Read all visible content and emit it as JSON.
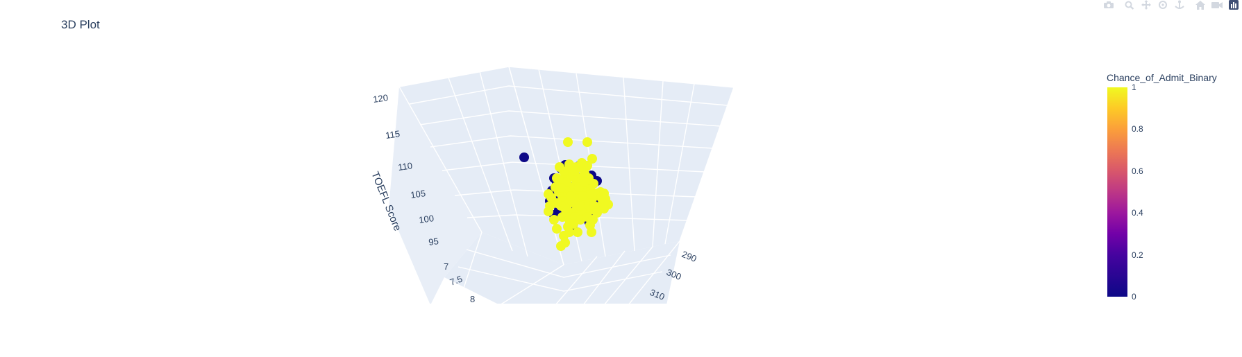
{
  "title": "3D Plot",
  "modebar": {
    "icons": [
      "camera-icon",
      "zoom-icon",
      "pan-icon",
      "orbit-icon",
      "turntable-icon",
      "home-icon",
      "reset-camera-icon",
      "plotly-logo-icon"
    ]
  },
  "chart_data": {
    "type": "scatter3d",
    "title": "3D Plot",
    "axes": {
      "x": {
        "tick_labels": [
          "290",
          "300",
          "310"
        ]
      },
      "y": {
        "tick_labels": [
          "7",
          "7.5",
          "8"
        ]
      },
      "z": {
        "label": "TOEFL Score",
        "tick_labels": [
          "95",
          "100",
          "105",
          "110",
          "115",
          "120"
        ]
      }
    },
    "colorbar": {
      "title": "Chance_of_Admit_Binary",
      "ticks": [
        "0",
        "0.2",
        "0.4",
        "0.6",
        "0.8",
        "1"
      ],
      "colorscale": "plasma"
    },
    "colors": {
      "class_0": "#0d0887",
      "class_1": "#f0f921",
      "axis_text": "#2a3f5f",
      "bg": "#e5ecf6",
      "grid": "#ffffff"
    },
    "points": [
      {
        "u": -0.65,
        "v": 0.08,
        "c": 0
      },
      {
        "u": -0.02,
        "v": 0.3,
        "c": 1
      },
      {
        "u": 0.33,
        "v": 0.06,
        "c": 1
      },
      {
        "u": 0.26,
        "v": 0.3,
        "c": 1
      },
      {
        "u": 0.15,
        "v": -0.04,
        "c": 0
      },
      {
        "u": 0.2,
        "v": -0.06,
        "c": 0
      },
      {
        "u": 0.32,
        "v": -0.18,
        "c": 0
      },
      {
        "u": 0.4,
        "v": -0.26,
        "c": 0
      },
      {
        "u": 0.3,
        "v": -0.34,
        "c": 0
      },
      {
        "u": 0.45,
        "v": -0.42,
        "c": 1
      },
      {
        "u": -0.22,
        "v": -0.22,
        "c": 0
      },
      {
        "u": -0.12,
        "v": -0.08,
        "c": 0
      },
      {
        "u": -0.06,
        "v": -0.03,
        "c": 0
      },
      {
        "u": -0.25,
        "v": -0.4,
        "c": 0
      },
      {
        "u": -0.28,
        "v": -0.55,
        "c": 0
      },
      {
        "u": -0.22,
        "v": -0.75,
        "c": 0
      },
      {
        "u": -0.15,
        "v": -0.68,
        "c": 0
      },
      {
        "u": -0.08,
        "v": -0.72,
        "c": 0
      },
      {
        "u": 0.05,
        "v": -0.9,
        "c": 0
      },
      {
        "u": 0.15,
        "v": -0.8,
        "c": 0
      },
      {
        "u": 0.28,
        "v": -0.84,
        "c": 0
      },
      {
        "u": 0.38,
        "v": -0.72,
        "c": 0
      },
      {
        "u": 0.42,
        "v": -0.6,
        "c": 0
      },
      {
        "u": 0.42,
        "v": -0.48,
        "c": 0
      },
      {
        "u": 0.22,
        "v": -0.3,
        "c": 0
      },
      {
        "u": 0.18,
        "v": -0.5,
        "c": 0
      },
      {
        "u": 0.05,
        "v": -0.62,
        "c": 0
      },
      {
        "u": -0.02,
        "v": -0.46,
        "c": 0
      },
      {
        "u": 0.1,
        "v": -0.2,
        "c": 0
      },
      {
        "u": 0.3,
        "v": -0.7,
        "c": 0
      },
      {
        "u": 0.12,
        "v": -0.75,
        "c": 0
      },
      {
        "u": -0.2,
        "v": -0.55,
        "c": 0
      },
      {
        "u": 0.38,
        "v": -0.52,
        "c": 0
      },
      {
        "u": -0.18,
        "v": -0.3,
        "c": 0
      },
      {
        "u": 0.24,
        "v": -0.55,
        "c": 0
      },
      {
        "u": 0.02,
        "v": -0.35,
        "c": 0
      },
      {
        "u": -0.18,
        "v": -0.22,
        "c": 1
      },
      {
        "u": -0.14,
        "v": -0.3,
        "c": 1
      },
      {
        "u": -0.1,
        "v": -0.24,
        "c": 1
      },
      {
        "u": -0.05,
        "v": -0.15,
        "c": 1
      },
      {
        "u": 0.0,
        "v": -0.1,
        "c": 1
      },
      {
        "u": 0.05,
        "v": -0.2,
        "c": 1
      },
      {
        "u": 0.1,
        "v": -0.3,
        "c": 1
      },
      {
        "u": 0.15,
        "v": -0.22,
        "c": 1
      },
      {
        "u": 0.22,
        "v": -0.15,
        "c": 1
      },
      {
        "u": 0.28,
        "v": -0.22,
        "c": 1
      },
      {
        "u": 0.35,
        "v": -0.3,
        "c": 1
      },
      {
        "u": 0.3,
        "v": -0.38,
        "c": 1
      },
      {
        "u": 0.25,
        "v": -0.42,
        "c": 1
      },
      {
        "u": 0.18,
        "v": -0.38,
        "c": 1
      },
      {
        "u": 0.12,
        "v": -0.45,
        "c": 1
      },
      {
        "u": 0.05,
        "v": -0.42,
        "c": 1
      },
      {
        "u": 0.0,
        "v": -0.35,
        "c": 1
      },
      {
        "u": -0.05,
        "v": -0.4,
        "c": 1
      },
      {
        "u": -0.1,
        "v": -0.48,
        "c": 1
      },
      {
        "u": -0.15,
        "v": -0.42,
        "c": 1
      },
      {
        "u": -0.2,
        "v": -0.35,
        "c": 1
      },
      {
        "u": -0.08,
        "v": -0.55,
        "c": 1
      },
      {
        "u": -0.02,
        "v": -0.6,
        "c": 1
      },
      {
        "u": 0.04,
        "v": -0.55,
        "c": 1
      },
      {
        "u": 0.1,
        "v": -0.6,
        "c": 1
      },
      {
        "u": 0.16,
        "v": -0.55,
        "c": 1
      },
      {
        "u": 0.22,
        "v": -0.6,
        "c": 1
      },
      {
        "u": 0.28,
        "v": -0.55,
        "c": 1
      },
      {
        "u": 0.34,
        "v": -0.5,
        "c": 1
      },
      {
        "u": 0.4,
        "v": -0.44,
        "c": 1
      },
      {
        "u": 0.46,
        "v": -0.5,
        "c": 1
      },
      {
        "u": 0.5,
        "v": -0.44,
        "c": 1
      },
      {
        "u": 0.52,
        "v": -0.52,
        "c": 1
      },
      {
        "u": 0.48,
        "v": -0.58,
        "c": 1
      },
      {
        "u": 0.42,
        "v": -0.64,
        "c": 1
      },
      {
        "u": 0.36,
        "v": -0.62,
        "c": 1
      },
      {
        "u": 0.3,
        "v": -0.68,
        "c": 1
      },
      {
        "u": 0.24,
        "v": -0.66,
        "c": 1
      },
      {
        "u": 0.18,
        "v": -0.7,
        "c": 1
      },
      {
        "u": 0.1,
        "v": -0.68,
        "c": 1
      },
      {
        "u": 0.02,
        "v": -0.72,
        "c": 1
      },
      {
        "u": -0.06,
        "v": -0.66,
        "c": 1
      },
      {
        "u": -0.12,
        "v": -0.62,
        "c": 1
      },
      {
        "u": -0.18,
        "v": -0.58,
        "c": 1
      },
      {
        "u": -0.26,
        "v": -0.5,
        "c": 1
      },
      {
        "u": -0.28,
        "v": -0.62,
        "c": 1
      },
      {
        "u": -0.3,
        "v": -0.7,
        "c": 1
      },
      {
        "u": -0.22,
        "v": -0.82,
        "c": 1
      },
      {
        "u": -0.1,
        "v": -0.78,
        "c": 1
      },
      {
        "u": 0.0,
        "v": -0.82,
        "c": 1
      },
      {
        "u": 0.08,
        "v": -0.78,
        "c": 1
      },
      {
        "u": 0.16,
        "v": -0.82,
        "c": 1
      },
      {
        "u": 0.26,
        "v": -0.78,
        "c": 1
      },
      {
        "u": 0.34,
        "v": -0.82,
        "c": 1
      },
      {
        "u": 0.4,
        "v": -0.72,
        "c": 1
      },
      {
        "u": -0.18,
        "v": -0.95,
        "c": 1
      },
      {
        "u": -0.08,
        "v": -1.05,
        "c": 1
      },
      {
        "u": 0.0,
        "v": -1.0,
        "c": 1
      },
      {
        "u": 0.12,
        "v": -1.0,
        "c": 1
      },
      {
        "u": 0.32,
        "v": -1.0,
        "c": 1
      },
      {
        "u": 0.3,
        "v": -0.9,
        "c": 1
      },
      {
        "u": -0.12,
        "v": -1.2,
        "c": 1
      },
      {
        "u": -0.06,
        "v": -1.15,
        "c": 1
      },
      {
        "u": 0.05,
        "v": -0.2,
        "c": 1
      },
      {
        "u": 0.0,
        "v": -0.02,
        "c": 1
      },
      {
        "u": 0.1,
        "v": -0.06,
        "c": 1
      },
      {
        "u": 0.18,
        "v": 0.0,
        "c": 1
      },
      {
        "u": 0.2,
        "v": -0.08,
        "c": 1
      },
      {
        "u": 0.26,
        "v": -0.04,
        "c": 1
      },
      {
        "u": -0.08,
        "v": -0.12,
        "c": 1
      },
      {
        "u": -0.14,
        "v": -0.06,
        "c": 1
      },
      {
        "u": 0.06,
        "v": -0.5,
        "c": 1
      },
      {
        "u": 0.14,
        "v": -0.35,
        "c": 1
      },
      {
        "u": 0.2,
        "v": -0.48,
        "c": 1
      },
      {
        "u": -0.04,
        "v": -0.28,
        "c": 1
      },
      {
        "u": 0.08,
        "v": -0.12,
        "c": 1
      },
      {
        "u": 0.02,
        "v": -0.48,
        "c": 1
      },
      {
        "u": 0.15,
        "v": -0.62,
        "c": 1
      },
      {
        "u": -0.04,
        "v": -0.7,
        "c": 1
      },
      {
        "u": 0.22,
        "v": -0.28,
        "c": 1
      },
      {
        "u": 0.32,
        "v": -0.45,
        "c": 1
      },
      {
        "u": -0.12,
        "v": -0.36,
        "c": 1
      },
      {
        "u": 0.06,
        "v": -0.88,
        "c": 1
      },
      {
        "u": -0.02,
        "v": -0.92,
        "c": 1
      },
      {
        "u": -0.3,
        "v": -0.45,
        "c": 1
      },
      {
        "u": 0.56,
        "v": -0.6,
        "c": 1
      },
      {
        "u": 0.5,
        "v": -0.66,
        "c": 1
      }
    ]
  }
}
